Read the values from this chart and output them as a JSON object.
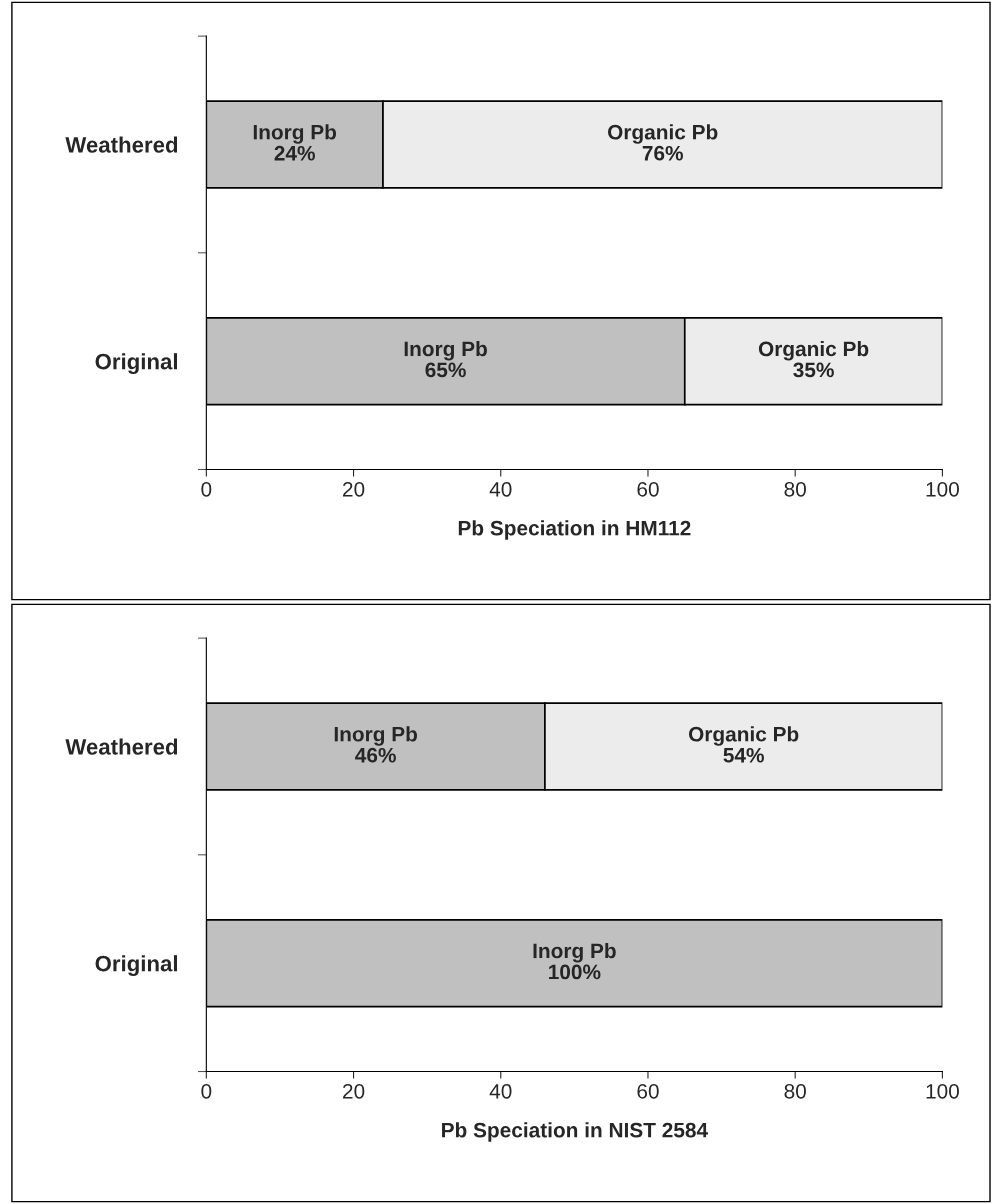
{
  "chart_data": [
    {
      "type": "bar",
      "orientation": "horizontal",
      "stacked": true,
      "xlabel": "Pb Speciation in HM112",
      "categories": [
        "Weathered",
        "Original"
      ],
      "xlim": [
        0,
        100
      ],
      "xticks": [
        0,
        20,
        40,
        60,
        80,
        100
      ],
      "legend": false,
      "grid": false,
      "series": [
        {
          "name": "Inorg Pb",
          "color": "#c0c0c0",
          "values": [
            24,
            65
          ],
          "value_labels": [
            "24%",
            "65%"
          ]
        },
        {
          "name": "Organic Pb",
          "color": "#ececec",
          "values": [
            76,
            35
          ],
          "value_labels": [
            "76%",
            "35%"
          ]
        }
      ]
    },
    {
      "type": "bar",
      "orientation": "horizontal",
      "stacked": true,
      "xlabel": "Pb Speciation in NIST 2584",
      "categories": [
        "Weathered",
        "Original"
      ],
      "xlim": [
        0,
        100
      ],
      "xticks": [
        0,
        20,
        40,
        60,
        80,
        100
      ],
      "legend": false,
      "grid": false,
      "series": [
        {
          "name": "Inorg Pb",
          "color": "#c0c0c0",
          "values": [
            46,
            100
          ],
          "value_labels": [
            "46%",
            "100%"
          ]
        },
        {
          "name": "Organic Pb",
          "color": "#ececec",
          "values": [
            54,
            null
          ],
          "value_labels": [
            "54%",
            null
          ]
        }
      ]
    }
  ]
}
